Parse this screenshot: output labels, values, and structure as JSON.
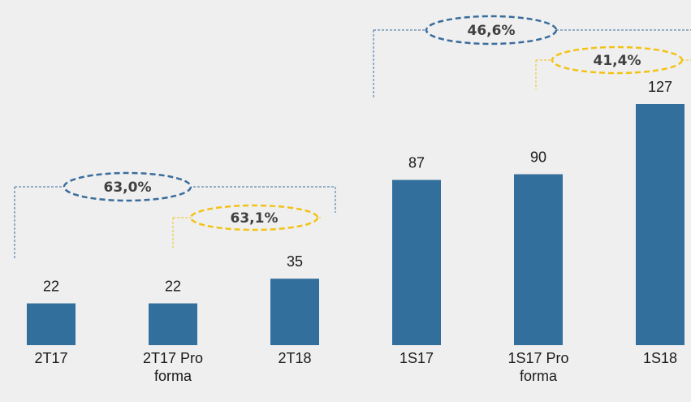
{
  "chart_data": {
    "type": "bar",
    "categories": [
      "2T17",
      "2T17 Pro forma",
      "2T18",
      "1S17",
      "1S17 Pro forma",
      "1S18"
    ],
    "values": [
      22,
      22,
      35,
      87,
      90,
      127
    ],
    "color": "#336f9c",
    "annotations": [
      "63,0%",
      "63,1%",
      "46,6%",
      "41,4%"
    ]
  }
}
